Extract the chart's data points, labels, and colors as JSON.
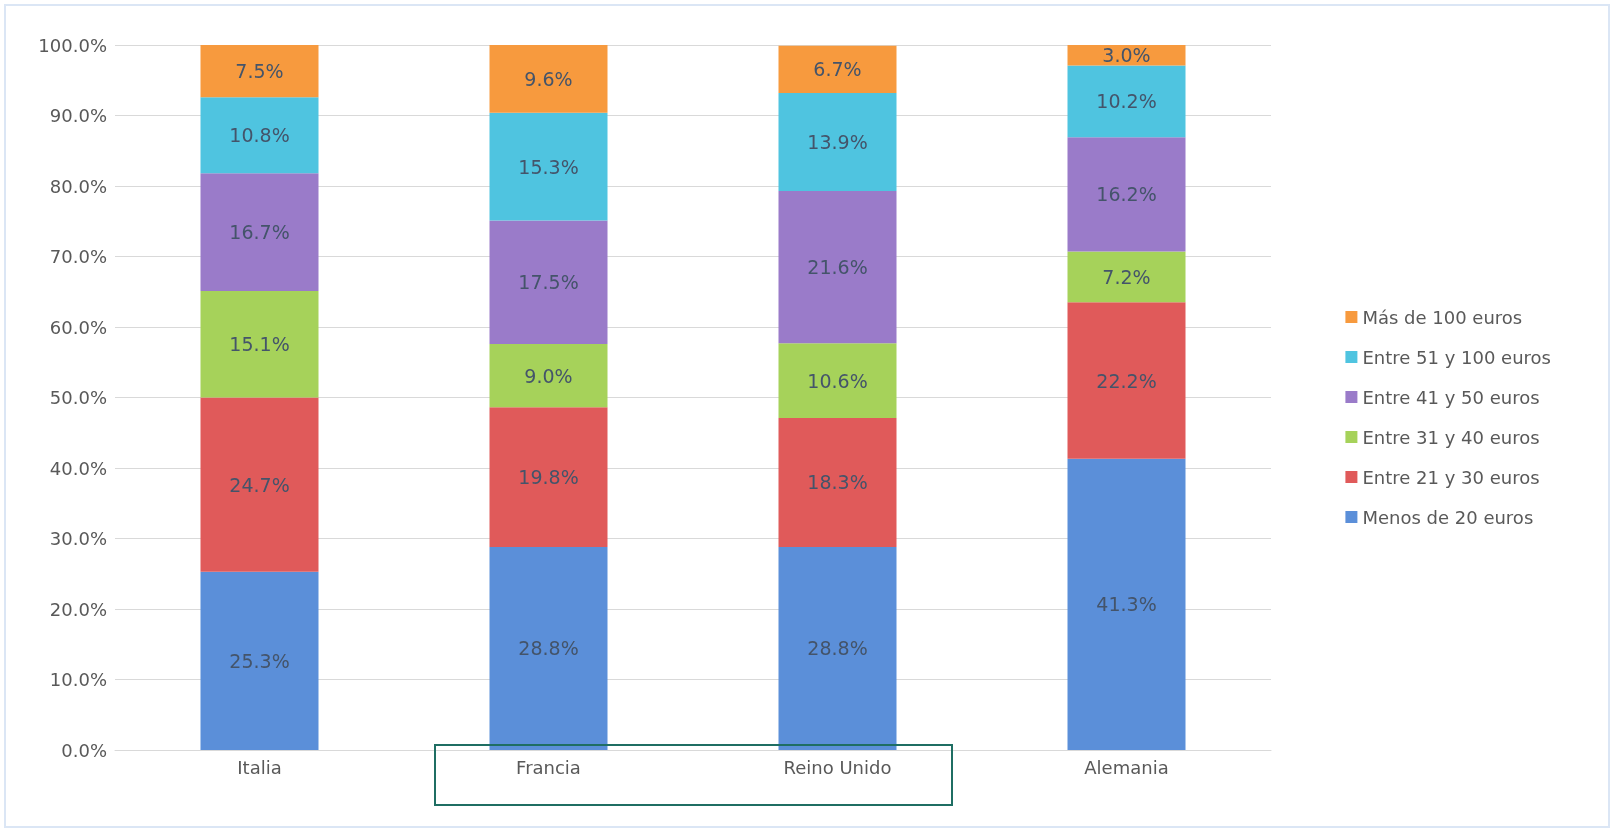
{
  "chart_data": {
    "type": "bar",
    "stacked": true,
    "categories": [
      "Italia",
      "Francia",
      "Reino Unido",
      "Alemania"
    ],
    "series": [
      {
        "name": "Menos de 20 euros",
        "color": "#5b8fd9",
        "values": [
          25.3,
          28.8,
          28.8,
          41.3
        ],
        "value_labels": [
          "25.3%",
          "28.8%",
          "28.8%",
          "41.3%"
        ]
      },
      {
        "name": "Entre 21 y 30 euros",
        "color": "#e05a5a",
        "values": [
          24.7,
          19.8,
          18.3,
          22.2
        ],
        "value_labels": [
          "24.7%",
          "19.8%",
          "18.3%",
          "22.2%"
        ]
      },
      {
        "name": "Entre 31 y 40 euros",
        "color": "#a6d25a",
        "values": [
          15.1,
          9.0,
          10.6,
          7.2
        ],
        "value_labels": [
          "15.1%",
          "9.0%",
          "10.6%",
          "7.2%"
        ]
      },
      {
        "name": "Entre 41 y 50 euros",
        "color": "#9a7bc9",
        "values": [
          16.7,
          17.5,
          21.6,
          16.2
        ],
        "value_labels": [
          "16.7%",
          "17.5%",
          "21.6%",
          "16.2%"
        ]
      },
      {
        "name": "Entre 51 y 100 euros",
        "color": "#4fc4e0",
        "values": [
          10.8,
          15.3,
          13.9,
          10.2
        ],
        "value_labels": [
          "10.8%",
          "15.3%",
          "13.9%",
          "10.2%"
        ]
      },
      {
        "name": "Más de 100 euros",
        "color": "#f79a3e",
        "values": [
          7.5,
          9.6,
          6.7,
          3.0
        ],
        "value_labels": [
          "7.5%",
          "9.6%",
          "6.7%",
          "3.0%"
        ]
      }
    ],
    "ylim": [
      0,
      100
    ],
    "yticks": [
      {
        "value": 0,
        "label": "0.0%"
      },
      {
        "value": 10,
        "label": "10.0%"
      },
      {
        "value": 20,
        "label": "20.0%"
      },
      {
        "value": 30,
        "label": "30.0%"
      },
      {
        "value": 40,
        "label": "40.0%"
      },
      {
        "value": 50,
        "label": "50.0%"
      },
      {
        "value": 60,
        "label": "60.0%"
      },
      {
        "value": 70,
        "label": "70.0%"
      },
      {
        "value": 80,
        "label": "80.0%"
      },
      {
        "value": 90,
        "label": "90.0%"
      },
      {
        "value": 100,
        "label": "100.0%"
      }
    ],
    "grid": "y",
    "legend": "right"
  }
}
